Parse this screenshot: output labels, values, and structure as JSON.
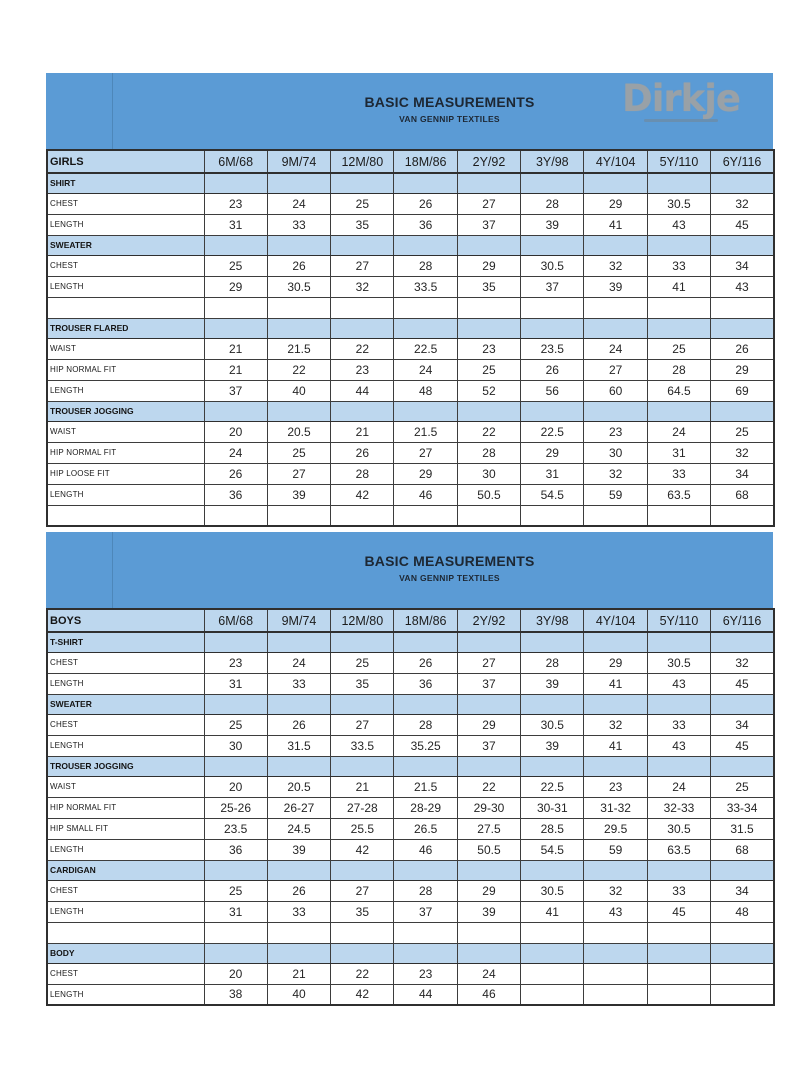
{
  "logo": {
    "text": "Dirkje"
  },
  "colors": {
    "banner_blue": "#5b9bd5",
    "row_light_blue": "#bdd7ee",
    "grid_border": "#3d3d3d",
    "title_text": "#1d2733",
    "logo_gray": "#99a1a7"
  },
  "sizes": [
    "6M/68",
    "9M/74",
    "12M/80",
    "18M/86",
    "2Y/92",
    "3Y/98",
    "4Y/104",
    "5Y/110",
    "6Y/116"
  ],
  "girls": {
    "banner": {
      "title": "BASIC MEASUREMENTS",
      "subtitle": "VAN GENNIP TEXTILES"
    },
    "header_label": "GIRLS",
    "rows": [
      {
        "type": "section",
        "label": "SHIRT"
      },
      {
        "type": "data",
        "label": "CHEST",
        "values": [
          "23",
          "24",
          "25",
          "26",
          "27",
          "28",
          "29",
          "30.5",
          "32"
        ]
      },
      {
        "type": "data",
        "label": "LENGTH",
        "values": [
          "31",
          "33",
          "35",
          "36",
          "37",
          "39",
          "41",
          "43",
          "45"
        ]
      },
      {
        "type": "section",
        "label": "SWEATER"
      },
      {
        "type": "data",
        "label": "CHEST",
        "values": [
          "25",
          "26",
          "27",
          "28",
          "29",
          "30.5",
          "32",
          "33",
          "34"
        ]
      },
      {
        "type": "data",
        "label": "LENGTH",
        "values": [
          "29",
          "30.5",
          "32",
          "33.5",
          "35",
          "37",
          "39",
          "41",
          "43"
        ]
      },
      {
        "type": "empty"
      },
      {
        "type": "section",
        "label": "TROUSER FLARED"
      },
      {
        "type": "data",
        "label": "WAIST",
        "values": [
          "21",
          "21.5",
          "22",
          "22.5",
          "23",
          "23.5",
          "24",
          "25",
          "26"
        ]
      },
      {
        "type": "data",
        "label": "HIP NORMAL FIT",
        "values": [
          "21",
          "22",
          "23",
          "24",
          "25",
          "26",
          "27",
          "28",
          "29"
        ]
      },
      {
        "type": "data",
        "label": "LENGTH",
        "values": [
          "37",
          "40",
          "44",
          "48",
          "52",
          "56",
          "60",
          "64.5",
          "69"
        ]
      },
      {
        "type": "section",
        "label": "TROUSER JOGGING"
      },
      {
        "type": "data",
        "label": "WAIST",
        "values": [
          "20",
          "20.5",
          "21",
          "21.5",
          "22",
          "22.5",
          "23",
          "24",
          "25"
        ]
      },
      {
        "type": "data",
        "label": "HIP NORMAL FIT",
        "values": [
          "24",
          "25",
          "26",
          "27",
          "28",
          "29",
          "30",
          "31",
          "32"
        ]
      },
      {
        "type": "data",
        "label": "HIP LOOSE FIT",
        "values": [
          "26",
          "27",
          "28",
          "29",
          "30",
          "31",
          "32",
          "33",
          "34"
        ]
      },
      {
        "type": "data",
        "label": "LENGTH",
        "values": [
          "36",
          "39",
          "42",
          "46",
          "50.5",
          "54.5",
          "59",
          "63.5",
          "68"
        ]
      },
      {
        "type": "empty"
      }
    ]
  },
  "boys": {
    "banner": {
      "title": "BASIC MEASUREMENTS",
      "subtitle": "VAN GENNIP TEXTILES"
    },
    "header_label": "BOYS",
    "rows": [
      {
        "type": "section",
        "label": "T-SHIRT"
      },
      {
        "type": "data",
        "label": "CHEST",
        "values": [
          "23",
          "24",
          "25",
          "26",
          "27",
          "28",
          "29",
          "30.5",
          "32"
        ]
      },
      {
        "type": "data",
        "label": "LENGTH",
        "values": [
          "31",
          "33",
          "35",
          "36",
          "37",
          "39",
          "41",
          "43",
          "45"
        ]
      },
      {
        "type": "section",
        "label": "SWEATER"
      },
      {
        "type": "data",
        "label": "CHEST",
        "values": [
          "25",
          "26",
          "27",
          "28",
          "29",
          "30.5",
          "32",
          "33",
          "34"
        ]
      },
      {
        "type": "data",
        "label": "LENGTH",
        "values": [
          "30",
          "31.5",
          "33.5",
          "35.25",
          "37",
          "39",
          "41",
          "43",
          "45"
        ]
      },
      {
        "type": "section",
        "label": "TROUSER JOGGING"
      },
      {
        "type": "data",
        "label": "WAIST",
        "values": [
          "20",
          "20.5",
          "21",
          "21.5",
          "22",
          "22.5",
          "23",
          "24",
          "25"
        ]
      },
      {
        "type": "data",
        "label": "HIP NORMAL FIT",
        "values": [
          "25-26",
          "26-27",
          "27-28",
          "28-29",
          "29-30",
          "30-31",
          "31-32",
          "32-33",
          "33-34"
        ]
      },
      {
        "type": "data",
        "label": "HIP SMALL FIT",
        "values": [
          "23.5",
          "24.5",
          "25.5",
          "26.5",
          "27.5",
          "28.5",
          "29.5",
          "30.5",
          "31.5"
        ]
      },
      {
        "type": "data",
        "label": "LENGTH",
        "values": [
          "36",
          "39",
          "42",
          "46",
          "50.5",
          "54.5",
          "59",
          "63.5",
          "68"
        ]
      },
      {
        "type": "section",
        "label": "CARDIGAN"
      },
      {
        "type": "data",
        "label": "CHEST",
        "values": [
          "25",
          "26",
          "27",
          "28",
          "29",
          "30.5",
          "32",
          "33",
          "34"
        ]
      },
      {
        "type": "data",
        "label": "LENGTH",
        "values": [
          "31",
          "33",
          "35",
          "37",
          "39",
          "41",
          "43",
          "45",
          "48"
        ]
      },
      {
        "type": "empty"
      },
      {
        "type": "section",
        "label": "BODY"
      },
      {
        "type": "data",
        "label": "CHEST",
        "values": [
          "20",
          "21",
          "22",
          "23",
          "24",
          "",
          "",
          "",
          ""
        ]
      },
      {
        "type": "data",
        "label": "LENGTH",
        "values": [
          "38",
          "40",
          "42",
          "44",
          "46",
          "",
          "",
          "",
          ""
        ]
      }
    ]
  }
}
